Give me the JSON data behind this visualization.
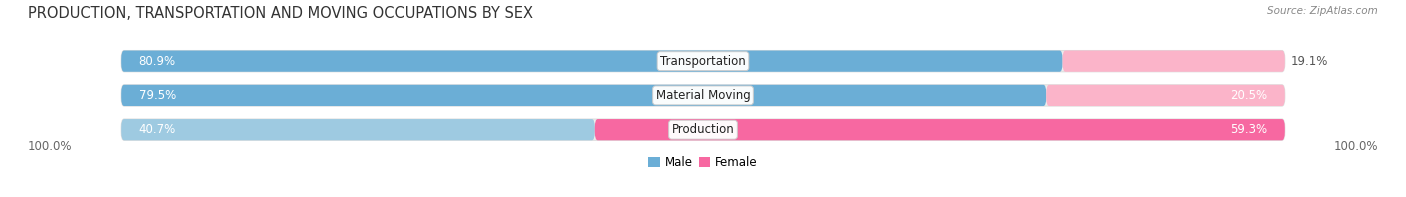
{
  "title": "PRODUCTION, TRANSPORTATION AND MOVING OCCUPATIONS BY SEX",
  "source": "Source: ZipAtlas.com",
  "categories": [
    "Transportation",
    "Material Moving",
    "Production"
  ],
  "male_values": [
    80.9,
    79.5,
    40.7
  ],
  "female_values": [
    19.1,
    20.5,
    59.3
  ],
  "male_color_transport": "#6baed6",
  "male_color_material": "#6baed6",
  "male_color_production": "#9ecae1",
  "female_color_transport": "#fbb4c9",
  "female_color_material": "#fbb4c9",
  "female_color_production": "#f768a1",
  "bar_bg_color": "#eeeeee",
  "bar_border_color": "#dddddd",
  "title_fontsize": 10.5,
  "source_fontsize": 7.5,
  "label_fontsize": 8.5,
  "pct_fontsize": 8.5,
  "tick_fontsize": 8.5,
  "x_left_label": "100.0%",
  "x_right_label": "100.0%",
  "legend_male_color": "#6baed6",
  "legend_female_color": "#f768a1"
}
